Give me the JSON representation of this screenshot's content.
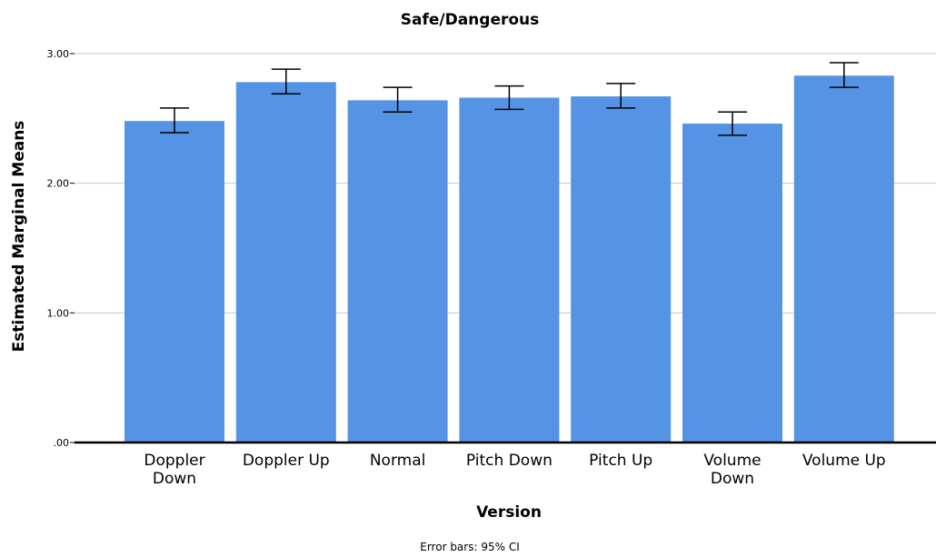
{
  "chart_data": {
    "type": "bar",
    "title": "Safe/Dangerous",
    "xlabel": "Version",
    "ylabel": "Estimated Marginal Means",
    "categories": [
      [
        "Doppler",
        "Down"
      ],
      [
        "Doppler Up"
      ],
      [
        "Normal"
      ],
      [
        "Pitch Down"
      ],
      [
        "Pitch Up"
      ],
      [
        "Volume",
        "Down"
      ],
      [
        "Volume Up"
      ]
    ],
    "values": [
      2.48,
      2.78,
      2.64,
      2.66,
      2.67,
      2.46,
      2.83
    ],
    "ci_lower": [
      2.39,
      2.69,
      2.55,
      2.57,
      2.58,
      2.37,
      2.74
    ],
    "ci_upper": [
      2.58,
      2.88,
      2.74,
      2.75,
      2.77,
      2.55,
      2.93
    ],
    "yticks": [
      ".00",
      "1.00",
      "2.00",
      "3.00"
    ],
    "ylim": [
      0,
      3.0
    ],
    "grid": true,
    "bar_color": "#5594e4",
    "footnote": "Error bars: 95% CI"
  }
}
